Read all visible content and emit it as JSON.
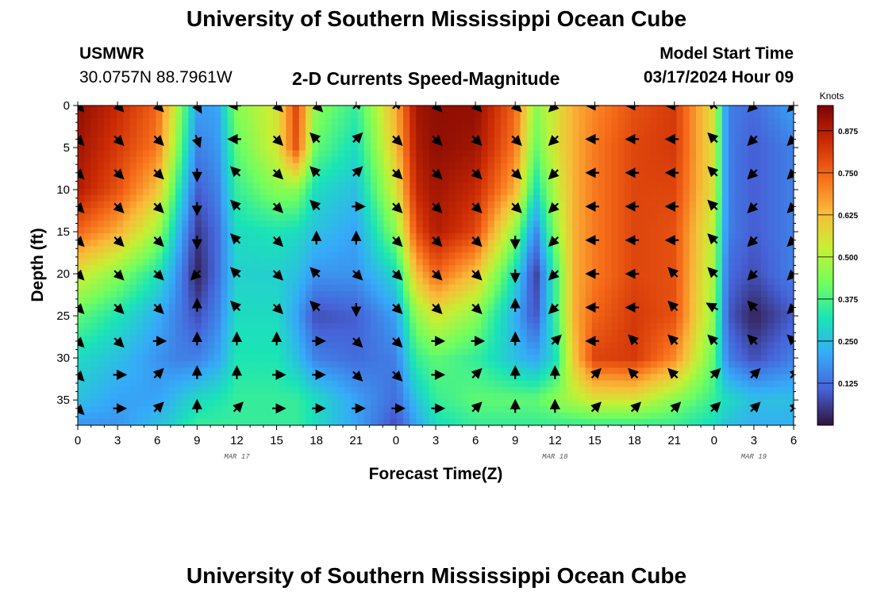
{
  "header": {
    "title_top": "University of Southern Mississippi Ocean Cube",
    "title_bottom": "University of Southern Mississippi Ocean Cube",
    "station_id": "USMWR",
    "station_coords": "30.0757N  88.7961W",
    "plot_subtitle": "2-D Currents Speed-Magnitude",
    "model_start_label": "Model Start Time",
    "model_start_value": "03/17/2024 Hour 09"
  },
  "colors": {
    "scale": [
      "#30123b",
      "#4662d7",
      "#36aaf9",
      "#1ae4b6",
      "#72fe5e",
      "#c8ef34",
      "#faba39",
      "#f66b19",
      "#cb2a04",
      "#7a0403"
    ]
  },
  "chart_data": {
    "type": "heatmap",
    "title": "2-D Currents Speed-Magnitude",
    "xlabel": "Forecast Time(Z)",
    "ylabel": "Depth (ft)",
    "x_range_hours": [
      0,
      54
    ],
    "x_ticks": [
      0,
      3,
      6,
      9,
      12,
      15,
      18,
      21,
      24,
      27,
      30,
      33,
      36,
      39,
      42,
      45,
      48,
      51,
      54
    ],
    "x_tick_labels": [
      "0",
      "3",
      "6",
      "9",
      "12",
      "15",
      "18",
      "21",
      "0",
      "3",
      "6",
      "9",
      "12",
      "15",
      "18",
      "21",
      "0",
      "3",
      "6"
    ],
    "date_labels": [
      {
        "hour": 12,
        "text": "MAR 17"
      },
      {
        "hour": 36,
        "text": "MAR 18"
      },
      {
        "hour": 51,
        "text": "MAR 19"
      }
    ],
    "y_range_ft": [
      0,
      38
    ],
    "y_ticks": [
      0,
      5,
      10,
      15,
      20,
      25,
      30,
      35
    ],
    "y_tick_labels": [
      "0",
      "5",
      "10",
      "15",
      "20",
      "25",
      "30",
      "35"
    ],
    "colorbar": {
      "unit": "Knots",
      "min": 0,
      "max": 0.95,
      "ticks": [
        0.125,
        0.25,
        0.375,
        0.5,
        0.625,
        0.75,
        0.875
      ],
      "tick_labels": [
        "0.125",
        "0.250",
        "0.375",
        "0.500",
        "0.625",
        "0.750",
        "0.875"
      ]
    },
    "speed_grid": {
      "units": "knots",
      "hours": [
        0,
        3,
        6,
        7.5,
        9,
        10.5,
        12,
        15,
        16.5,
        18,
        21,
        24,
        25.5,
        27,
        30,
        33,
        34.5,
        36,
        37.5,
        39,
        42,
        45,
        48,
        49,
        51,
        54
      ],
      "depths_ft": [
        0,
        5,
        10,
        15,
        20,
        25,
        30,
        35,
        38
      ],
      "values": [
        [
          0.92,
          0.85,
          0.75,
          0.5,
          0.2,
          0.2,
          0.45,
          0.55,
          0.8,
          0.45,
          0.35,
          0.65,
          0.9,
          0.92,
          0.92,
          0.75,
          0.45,
          0.55,
          0.65,
          0.7,
          0.78,
          0.82,
          0.55,
          0.15,
          0.12,
          0.2
        ],
        [
          0.9,
          0.82,
          0.72,
          0.45,
          0.15,
          0.18,
          0.4,
          0.55,
          0.78,
          0.4,
          0.3,
          0.62,
          0.88,
          0.92,
          0.9,
          0.72,
          0.4,
          0.55,
          0.65,
          0.72,
          0.8,
          0.82,
          0.55,
          0.15,
          0.1,
          0.15
        ],
        [
          0.88,
          0.78,
          0.62,
          0.35,
          0.1,
          0.15,
          0.35,
          0.45,
          0.45,
          0.3,
          0.25,
          0.55,
          0.85,
          0.9,
          0.85,
          0.65,
          0.3,
          0.5,
          0.65,
          0.72,
          0.8,
          0.8,
          0.55,
          0.15,
          0.1,
          0.15
        ],
        [
          0.75,
          0.65,
          0.48,
          0.25,
          0.05,
          0.12,
          0.3,
          0.32,
          0.3,
          0.25,
          0.2,
          0.45,
          0.78,
          0.88,
          0.8,
          0.45,
          0.15,
          0.45,
          0.65,
          0.72,
          0.8,
          0.78,
          0.5,
          0.15,
          0.1,
          0.15
        ],
        [
          0.55,
          0.45,
          0.32,
          0.18,
          0.02,
          0.12,
          0.28,
          0.28,
          0.25,
          0.18,
          0.18,
          0.3,
          0.62,
          0.75,
          0.62,
          0.3,
          0.05,
          0.35,
          0.65,
          0.72,
          0.8,
          0.78,
          0.48,
          0.12,
          0.08,
          0.15
        ],
        [
          0.4,
          0.32,
          0.22,
          0.15,
          0.08,
          0.15,
          0.3,
          0.3,
          0.2,
          0.08,
          0.1,
          0.2,
          0.45,
          0.55,
          0.45,
          0.22,
          0.08,
          0.35,
          0.65,
          0.75,
          0.82,
          0.78,
          0.45,
          0.1,
          0.02,
          0.1
        ],
        [
          0.3,
          0.25,
          0.18,
          0.15,
          0.15,
          0.2,
          0.32,
          0.32,
          0.25,
          0.15,
          0.12,
          0.15,
          0.35,
          0.4,
          0.35,
          0.25,
          0.2,
          0.3,
          0.62,
          0.8,
          0.82,
          0.7,
          0.4,
          0.15,
          0.08,
          0.15
        ],
        [
          0.25,
          0.2,
          0.2,
          0.25,
          0.3,
          0.32,
          0.35,
          0.35,
          0.35,
          0.3,
          0.2,
          0.12,
          0.25,
          0.35,
          0.4,
          0.4,
          0.4,
          0.45,
          0.5,
          0.55,
          0.55,
          0.45,
          0.35,
          0.3,
          0.25,
          0.25
        ],
        [
          0.18,
          0.18,
          0.25,
          0.3,
          0.35,
          0.35,
          0.35,
          0.35,
          0.35,
          0.3,
          0.2,
          0.08,
          0.2,
          0.3,
          0.35,
          0.35,
          0.35,
          0.35,
          0.35,
          0.35,
          0.35,
          0.35,
          0.3,
          0.25,
          0.22,
          0.22
        ]
      ]
    },
    "arrow_grid": {
      "hours": [
        0,
        3,
        6,
        9,
        12,
        15,
        18,
        21,
        24,
        27,
        30,
        33,
        36,
        39,
        42,
        45,
        48,
        51,
        54
      ],
      "depths_ft": [
        0,
        4,
        8,
        12,
        16,
        20,
        24,
        28,
        32,
        36
      ],
      "directions_deg_clockwise_from_north": [
        [
          135,
          135,
          135,
          150,
          270,
          135,
          135,
          45,
          45,
          135,
          135,
          135,
          225,
          270,
          270,
          270,
          315,
          225,
          225
        ],
        [
          135,
          135,
          135,
          160,
          270,
          135,
          315,
          45,
          135,
          135,
          135,
          135,
          225,
          270,
          270,
          270,
          315,
          225,
          225
        ],
        [
          135,
          135,
          135,
          180,
          315,
          135,
          315,
          45,
          135,
          135,
          135,
          135,
          225,
          270,
          270,
          270,
          315,
          225,
          225
        ],
        [
          135,
          135,
          135,
          180,
          315,
          135,
          315,
          90,
          135,
          135,
          135,
          135,
          225,
          270,
          270,
          270,
          315,
          225,
          225
        ],
        [
          135,
          135,
          135,
          180,
          315,
          135,
          0,
          0,
          135,
          135,
          135,
          180,
          225,
          270,
          270,
          270,
          315,
          225,
          225
        ],
        [
          135,
          135,
          135,
          225,
          315,
          135,
          315,
          135,
          135,
          135,
          135,
          180,
          225,
          270,
          270,
          315,
          315,
          225,
          225
        ],
        [
          135,
          135,
          135,
          0,
          315,
          135,
          315,
          180,
          135,
          135,
          135,
          0,
          225,
          270,
          270,
          315,
          300,
          315,
          225
        ],
        [
          135,
          135,
          90,
          0,
          0,
          0,
          90,
          135,
          135,
          90,
          90,
          0,
          45,
          270,
          315,
          315,
          315,
          315,
          315
        ],
        [
          135,
          90,
          45,
          0,
          0,
          90,
          90,
          135,
          135,
          90,
          45,
          0,
          0,
          45,
          315,
          315,
          45,
          45,
          45
        ],
        [
          135,
          90,
          45,
          0,
          45,
          90,
          90,
          90,
          90,
          90,
          45,
          0,
          0,
          45,
          45,
          45,
          45,
          45,
          45
        ]
      ]
    }
  }
}
